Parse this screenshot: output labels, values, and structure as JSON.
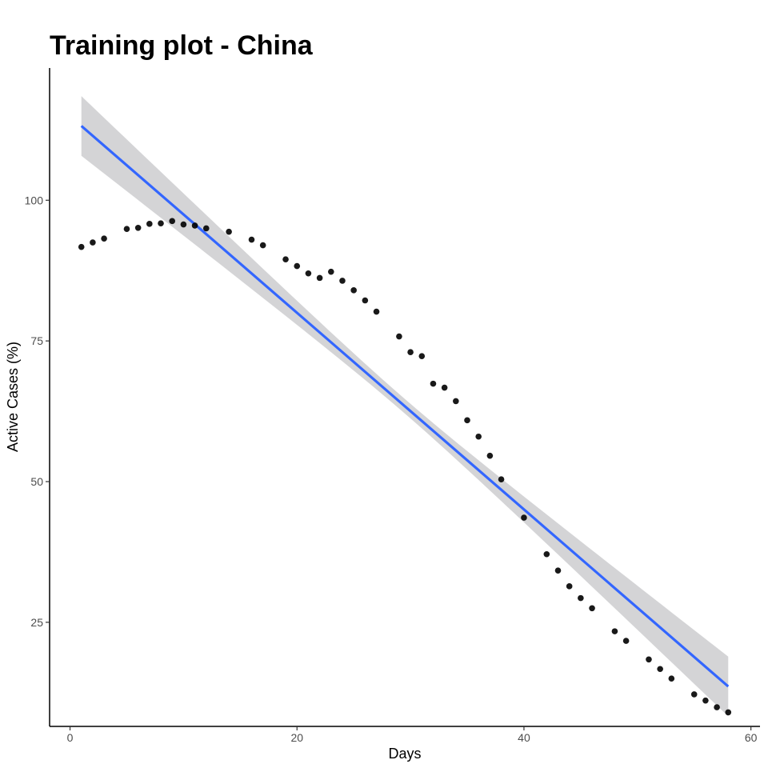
{
  "chart_data": {
    "type": "scatter",
    "title": "Training plot - China",
    "xlabel": "Days",
    "ylabel": "Active Cases (%)",
    "xlim": [
      -1.8,
      60.8
    ],
    "ylim": [
      6.5,
      123.5
    ],
    "x_ticks": [
      0,
      20,
      40,
      60
    ],
    "y_ticks": [
      25,
      50,
      75,
      100
    ],
    "grid": false,
    "colors": {
      "points": "#000000",
      "fit_line": "#3366ff",
      "confidence_band": "#d4d4d6",
      "axis": "#000000",
      "tick_label": "#4d4d4d"
    },
    "points": [
      [
        1,
        91.7
      ],
      [
        2,
        92.5
      ],
      [
        3,
        93.2
      ],
      [
        5,
        94.9
      ],
      [
        6,
        95.1
      ],
      [
        7,
        95.8
      ],
      [
        8,
        95.9
      ],
      [
        9,
        96.3
      ],
      [
        10,
        95.7
      ],
      [
        11,
        95.5
      ],
      [
        12,
        95.0
      ],
      [
        14,
        94.4
      ],
      [
        16,
        93.0
      ],
      [
        17,
        92.0
      ],
      [
        19,
        89.5
      ],
      [
        20,
        88.3
      ],
      [
        21,
        87.0
      ],
      [
        22,
        86.2
      ],
      [
        23,
        87.3
      ],
      [
        24,
        85.7
      ],
      [
        25,
        84.0
      ],
      [
        26,
        82.2
      ],
      [
        27,
        80.2
      ],
      [
        29,
        75.8
      ],
      [
        30,
        73.0
      ],
      [
        31,
        72.3
      ],
      [
        32,
        67.4
      ],
      [
        33,
        66.7
      ],
      [
        34,
        64.3
      ],
      [
        35,
        60.9
      ],
      [
        36,
        58.0
      ],
      [
        37,
        54.6
      ],
      [
        38,
        50.4
      ],
      [
        40,
        43.6
      ],
      [
        42,
        37.1
      ],
      [
        43,
        34.2
      ],
      [
        44,
        31.4
      ],
      [
        45,
        29.3
      ],
      [
        46,
        27.5
      ],
      [
        48,
        23.4
      ],
      [
        49,
        21.7
      ],
      [
        51,
        18.4
      ],
      [
        52,
        16.7
      ],
      [
        53,
        15.0
      ],
      [
        55,
        12.2
      ],
      [
        56,
        11.1
      ],
      [
        57,
        9.9
      ],
      [
        58,
        9.0
      ]
    ],
    "fit": {
      "method": "linear",
      "start": [
        1,
        113.2
      ],
      "end": [
        58,
        13.6
      ],
      "ci_half_width_at_ends": 5.3,
      "ci_half_width_at_center": 1.3
    }
  }
}
